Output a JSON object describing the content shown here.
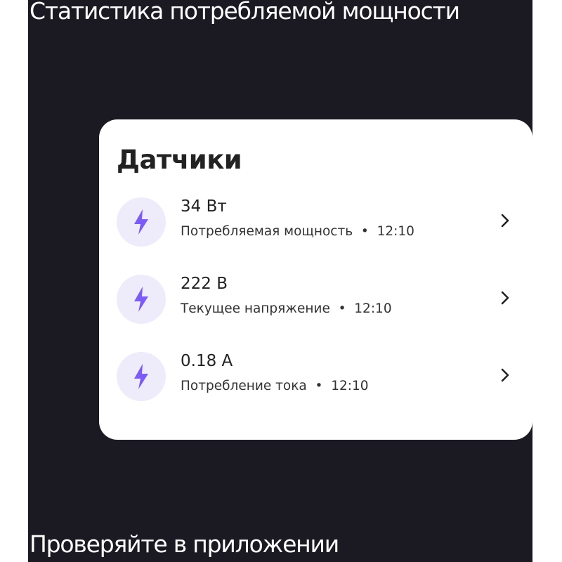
{
  "header": {
    "title": "Статистика потребляемой мощности"
  },
  "card": {
    "title": "Датчики",
    "items": [
      {
        "value": "34 Вт",
        "label": "Потребляемая мощность",
        "time": "12:10"
      },
      {
        "value": "222 В",
        "label": "Текущее напряжение",
        "time": "12:10"
      },
      {
        "value": "0.18 А",
        "label": "Потребление тока",
        "time": "12:10"
      }
    ],
    "separator": "•"
  },
  "footer": {
    "text": "Проверяйте в приложении"
  },
  "colors": {
    "accent": "#7b5cf5",
    "icon_bg": "#eeebfb",
    "panel_bg": "#1b1922"
  }
}
